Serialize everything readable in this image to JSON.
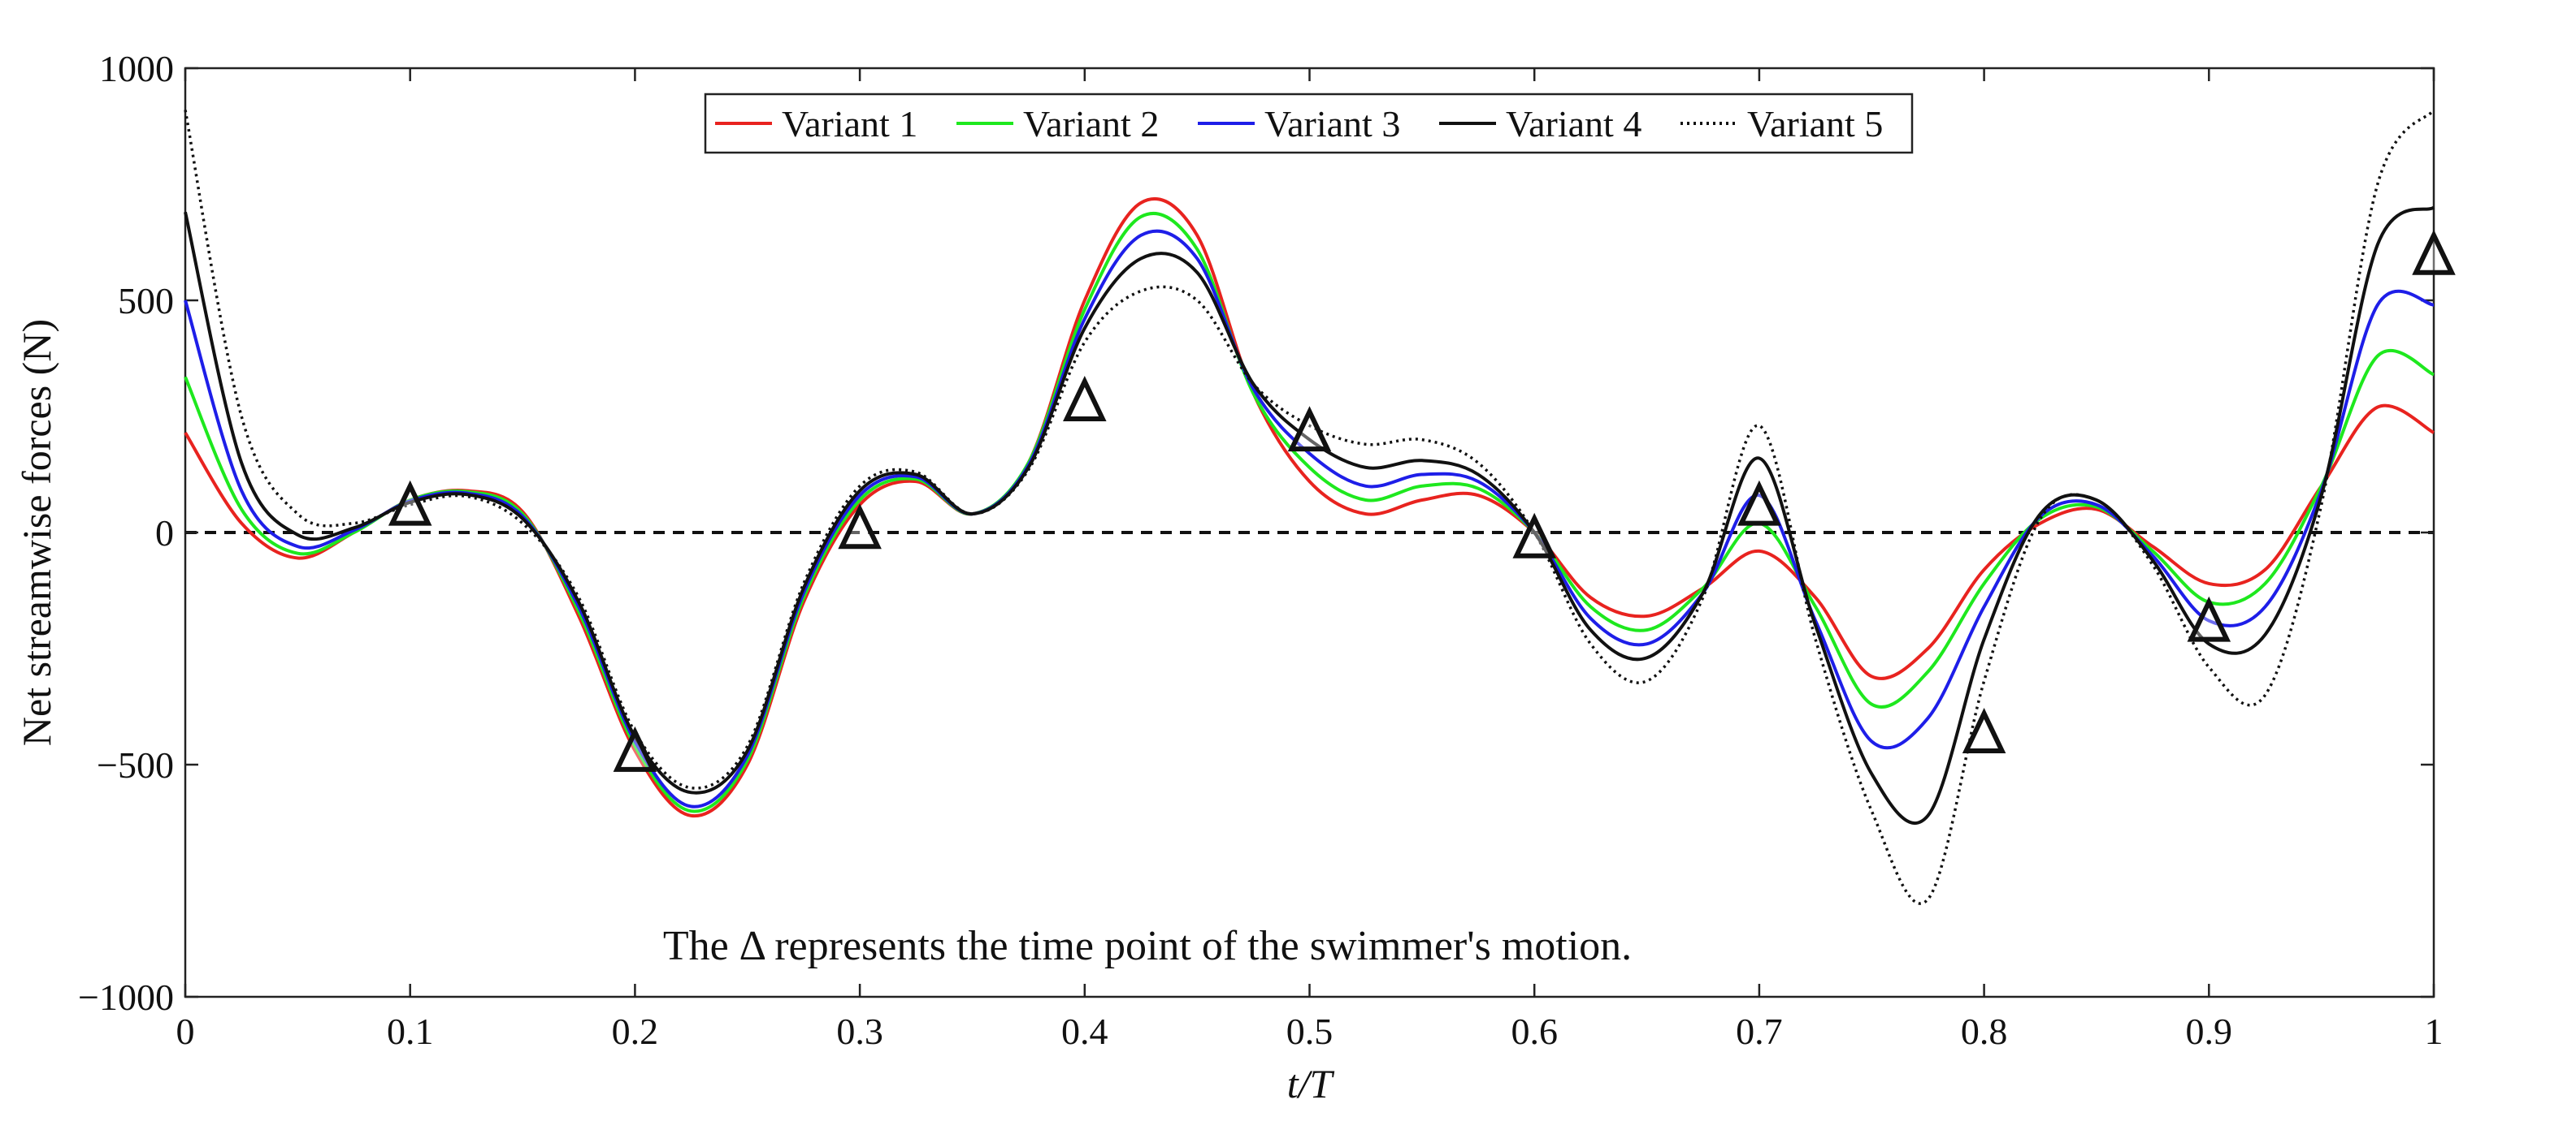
{
  "chart_data": {
    "type": "line",
    "title": "",
    "xlabel": "t/T",
    "ylabel": "Net streamwise forces (N)",
    "xlim": [
      0,
      1
    ],
    "ylim": [
      -1000,
      1000
    ],
    "xticks": [
      0,
      0.1,
      0.2,
      0.3,
      0.4,
      0.5,
      0.6,
      0.7,
      0.8,
      0.9,
      1
    ],
    "xtick_labels": [
      "0",
      "0.1",
      "0.2",
      "0.3",
      "0.4",
      "0.5",
      "0.6",
      "0.7",
      "0.8",
      "0.9",
      "1"
    ],
    "yticks": [
      -1000,
      -500,
      0,
      500,
      1000
    ],
    "ytick_labels": [
      "−1000",
      "−500",
      "0",
      "500",
      "1000"
    ],
    "grid": false,
    "legend_position": "top-center",
    "zero_line": "dashed",
    "annotation": "The Δ represents the time point of the swimmer's motion.",
    "markers": {
      "symbol": "triangle",
      "points": [
        {
          "x": 0.1,
          "y": 60
        },
        {
          "x": 0.2,
          "y": -470
        },
        {
          "x": 0.3,
          "y": 10
        },
        {
          "x": 0.4,
          "y": 285
        },
        {
          "x": 0.5,
          "y": 220
        },
        {
          "x": 0.6,
          "y": -10
        },
        {
          "x": 0.7,
          "y": 60
        },
        {
          "x": 0.8,
          "y": -430
        },
        {
          "x": 0.9,
          "y": -190
        },
        {
          "x": 1.0,
          "y": 600
        }
      ]
    },
    "x": [
      0,
      0.025,
      0.05,
      0.075,
      0.1,
      0.125,
      0.15,
      0.175,
      0.2,
      0.225,
      0.25,
      0.275,
      0.3,
      0.325,
      0.35,
      0.375,
      0.4,
      0.425,
      0.45,
      0.475,
      0.5,
      0.525,
      0.55,
      0.575,
      0.6,
      0.625,
      0.65,
      0.675,
      0.7,
      0.725,
      0.75,
      0.775,
      0.8,
      0.825,
      0.85,
      0.875,
      0.9,
      0.925,
      0.95,
      0.975,
      1.0
    ],
    "series": [
      {
        "name": "Variant 1",
        "color": "#e8231f",
        "dash": "solid",
        "values": [
          215,
          20,
          -55,
          0,
          70,
          90,
          45,
          -180,
          -470,
          -610,
          -500,
          -150,
          60,
          110,
          40,
          150,
          500,
          710,
          640,
          300,
          110,
          40,
          70,
          80,
          0,
          -140,
          -180,
          -120,
          -40,
          -140,
          -310,
          -250,
          -80,
          20,
          50,
          -30,
          -110,
          -80,
          100,
          270,
          215
        ]
      },
      {
        "name": "Variant 2",
        "color": "#1ee81e",
        "dash": "solid",
        "values": [
          335,
          50,
          -45,
          0,
          70,
          88,
          40,
          -170,
          -460,
          -600,
          -490,
          -140,
          70,
          115,
          40,
          150,
          480,
          680,
          610,
          300,
          140,
          70,
          100,
          95,
          0,
          -160,
          -210,
          -120,
          20,
          -160,
          -370,
          -300,
          -110,
          30,
          55,
          -40,
          -150,
          -110,
          100,
          380,
          340
        ]
      },
      {
        "name": "Variant 3",
        "color": "#1e1ee8",
        "dash": "solid",
        "values": [
          500,
          90,
          -30,
          5,
          68,
          85,
          35,
          -160,
          -450,
          -590,
          -480,
          -130,
          80,
          120,
          40,
          145,
          460,
          640,
          590,
          310,
          170,
          100,
          125,
          110,
          0,
          -185,
          -240,
          -130,
          80,
          -190,
          -450,
          -400,
          -160,
          35,
          60,
          -50,
          -190,
          -160,
          90,
          490,
          490
        ]
      },
      {
        "name": "Variant 4",
        "color": "#111111",
        "dash": "solid",
        "values": [
          690,
          150,
          -5,
          10,
          65,
          82,
          30,
          -150,
          -440,
          -560,
          -470,
          -120,
          90,
          125,
          40,
          140,
          440,
          590,
          560,
          320,
          200,
          140,
          155,
          125,
          0,
          -210,
          -270,
          -130,
          160,
          -200,
          -520,
          -610,
          -230,
          40,
          70,
          -60,
          -240,
          -220,
          80,
          620,
          700
        ]
      },
      {
        "name": "Variant 5",
        "color": "#111111",
        "dash": "dotted",
        "values": [
          910,
          250,
          40,
          20,
          60,
          78,
          20,
          -140,
          -430,
          -550,
          -460,
          -110,
          100,
          130,
          40,
          135,
          410,
          520,
          500,
          320,
          230,
          190,
          200,
          150,
          0,
          -240,
          -320,
          -140,
          230,
          -230,
          -600,
          -790,
          -320,
          30,
          70,
          -70,
          -290,
          -350,
          60,
          750,
          910
        ]
      }
    ]
  }
}
